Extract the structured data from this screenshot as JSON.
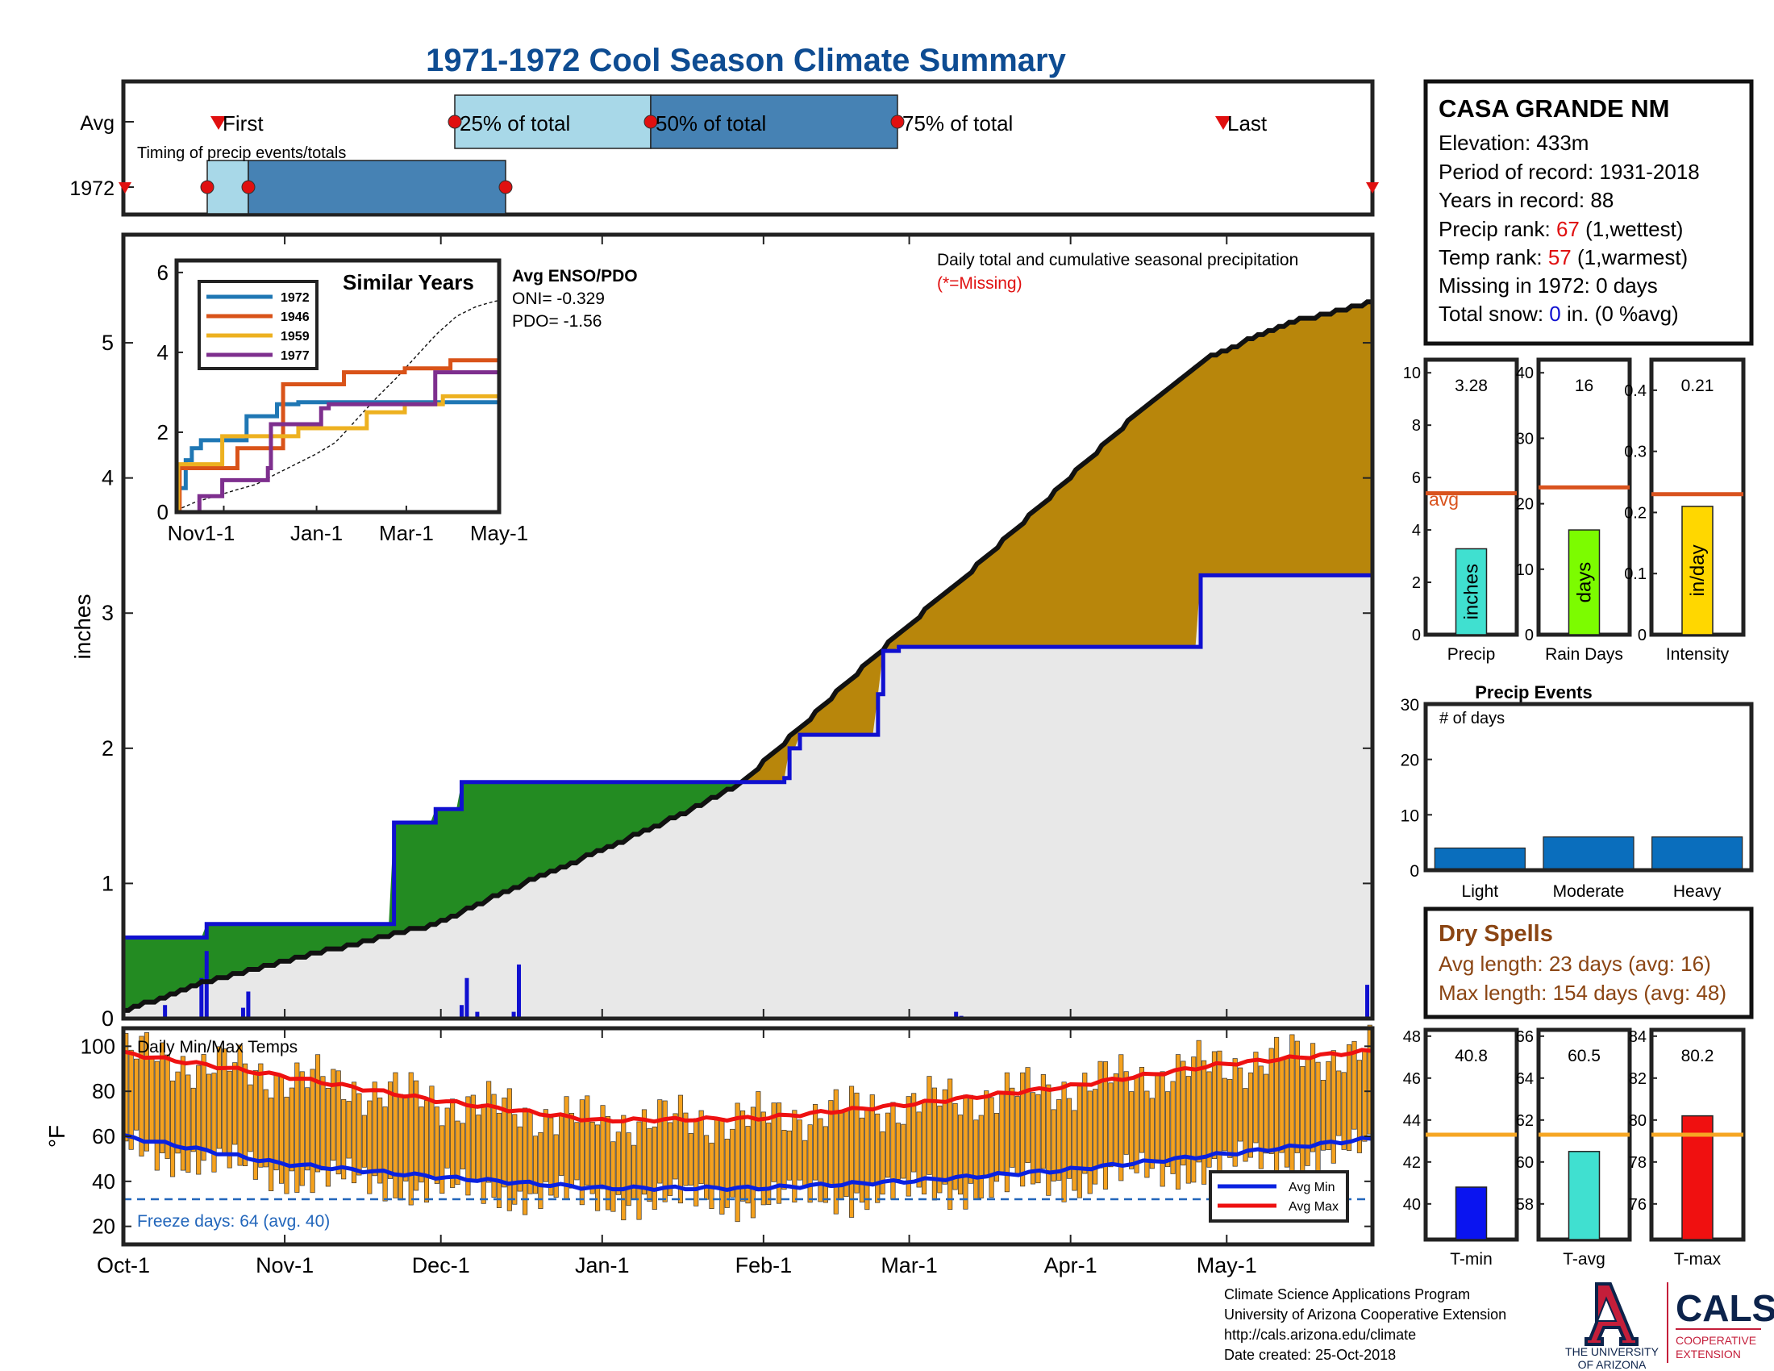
{
  "title": "1971-1972 Cool Season Climate Summary",
  "timing": {
    "avg_label": "Avg",
    "year_label": "1972",
    "caption": "Timing of precip events/totals",
    "first_label": "First",
    "q25_label": "25% of total",
    "q50_label": "50% of total",
    "q75_label": "75% of total",
    "last_label": "Last"
  },
  "station": {
    "name": "CASA GRANDE NM",
    "elevation": "Elevation: 433m",
    "period": "Period of record: 1931-2018",
    "years": "Years in record: 88",
    "precip_rank_pre": "Precip rank: ",
    "precip_rank_val": "67",
    "precip_rank_post": " (1,wettest)",
    "temp_rank_pre": "Temp rank: ",
    "temp_rank_val": "57",
    "temp_rank_post": " (1,warmest)",
    "missing": "Missing in 1972: 0 days",
    "snow_pre": "Total snow: ",
    "snow_val": "0",
    "snow_post": " in. (0 %avg)"
  },
  "main": {
    "ylabel": "inches",
    "note1": "Daily total and cumulative seasonal precipitation",
    "note2": "(*=Missing)",
    "xticks": [
      "Oct-1",
      "Nov-1",
      "Dec-1",
      "Jan-1",
      "Feb-1",
      "Mar-1",
      "Apr-1",
      "May-1"
    ],
    "yticks": [
      "0",
      "1",
      "2",
      "3",
      "4",
      "5"
    ]
  },
  "inset": {
    "title": "Similar Years",
    "enso_title": "Avg ENSO/PDO",
    "oni": "ONI= -0.329",
    "pdo": "PDO= -1.56",
    "xticks": [
      "Nov1-1",
      "Jan-1",
      "Mar-1",
      "May-1"
    ],
    "yticks": [
      "0",
      "2",
      "4",
      "6"
    ],
    "legend": [
      "1972",
      "1946",
      "1959",
      "1977"
    ]
  },
  "temps": {
    "title": "Daily Min/Max Temps",
    "ylabel": "°F",
    "yticks": [
      "20",
      "40",
      "60",
      "80",
      "100"
    ],
    "freeze": "Freeze days: 64 (avg. 40)",
    "legend_min": "Avg Min",
    "legend_max": "Avg Max"
  },
  "bars": {
    "precip": {
      "value": "3.28",
      "label": "Precip",
      "unit": "inches",
      "yticks": [
        "0",
        "2",
        "4",
        "6",
        "8",
        "10"
      ],
      "avg_label": "avg"
    },
    "raindays": {
      "value": "16",
      "label": "Rain Days",
      "unit": "days",
      "yticks": [
        "0",
        "10",
        "20",
        "30",
        "40"
      ]
    },
    "intensity": {
      "value": "0.21",
      "label": "Intensity",
      "unit": "in/day",
      "yticks": [
        "0",
        "0.1",
        "0.2",
        "0.3",
        "0.4"
      ]
    }
  },
  "events": {
    "title": "Precip Events",
    "ylabel": "# of days",
    "yticks": [
      "0",
      "10",
      "20",
      "30"
    ],
    "categories": [
      "Light",
      "Moderate",
      "Heavy"
    ]
  },
  "dry": {
    "title": "Dry Spells",
    "avg": "Avg length: 23 days (avg: 16)",
    "max": "Max length: 154 days (avg: 48)"
  },
  "tbars": {
    "tmin": {
      "value": "40.8",
      "label": "T-min",
      "yticks": [
        "40",
        "42",
        "44",
        "46",
        "48"
      ]
    },
    "tavg": {
      "value": "60.5",
      "label": "T-avg",
      "yticks": [
        "58",
        "60",
        "62",
        "64",
        "66"
      ]
    },
    "tmax": {
      "value": "80.2",
      "label": "T-max",
      "yticks": [
        "76",
        "78",
        "80",
        "82",
        "84"
      ]
    }
  },
  "footer": {
    "line1": "Climate Science Applications Program",
    "line2": "University of Arizona Cooperative Extension",
    "line3": "http://cals.arizona.edu/climate",
    "line4": " Date created: 25-Oct-2018",
    "ua1": "THE UNIVERSITY",
    "ua2": "OF ARIZONA",
    "cals": "CALS",
    "cals1": "COOPERATIVE",
    "cals2": "EXTENSION"
  },
  "colors": {
    "title": "#0e4c92",
    "observed": "#1010d0",
    "above": "#238b22",
    "below": "#b8860b",
    "baseline": "#e8e8e8",
    "temp_bar": "#f4a11e",
    "avg_min": "#0a22e0",
    "avg_max": "#ee1111",
    "rank_red": "#e01010",
    "snow_blue": "#1010d0",
    "dry_brown": "#8b4513"
  },
  "chart_data": [
    {
      "type": "area",
      "title": "Daily total and cumulative seasonal precipitation",
      "ylabel": "inches",
      "x_ticks": [
        "Oct-1",
        "Nov-1",
        "Dec-1",
        "Jan-1",
        "Feb-1",
        "Mar-1",
        "Apr-1",
        "May-1"
      ],
      "ylim": [
        0,
        5.8
      ],
      "series": [
        {
          "name": "1972",
          "x": [
            1,
            10,
            17,
            52,
            53,
            60,
            61,
            64,
            66,
            115,
            128,
            129,
            131,
            139,
            146,
            147,
            150,
            207,
            208,
            241
          ],
          "y": [
            0.6,
            0.6,
            0.7,
            0.7,
            1.45,
            1.45,
            1.55,
            1.55,
            1.75,
            1.75,
            1.78,
            2.0,
            2.1,
            2.1,
            2.4,
            2.72,
            2.75,
            2.75,
            3.28,
            3.28
          ]
        },
        {
          "x": [
            1,
            15,
            30,
            45,
            61,
            75,
            90,
            105,
            120,
            135,
            150,
            165,
            180,
            195,
            210,
            225,
            241
          ],
          "y": [
            0.05,
            0.25,
            0.4,
            0.55,
            0.7,
            0.95,
            1.2,
            1.45,
            1.75,
            2.3,
            2.85,
            3.35,
            3.9,
            4.45,
            4.9,
            5.15,
            5.3
          ]
        }
      ]
    },
    {
      "type": "bar",
      "title": "Daily total precipitation",
      "ylabel": "inches",
      "x": [
        9,
        16,
        17,
        24,
        25,
        66,
        67,
        69,
        76,
        77,
        161,
        162,
        240,
        241
      ],
      "y": [
        0.1,
        0.3,
        0.5,
        0.08,
        0.2,
        0.1,
        0.3,
        0.05,
        0.05,
        0.4,
        0.05,
        0.02,
        0.25,
        0.37
      ]
    },
    {
      "type": "line",
      "title": "Similar Years",
      "x_ticks": [
        "Nov1-1",
        "Jan-1",
        "Mar-1",
        "May-1"
      ],
      "ylim": [
        0,
        6
      ],
      "series": [
        {
          "name": "1972",
          "x": [
            0,
            1,
            6,
            10,
            16,
            24,
            46,
            66,
            80,
            120,
            208,
            212
          ],
          "y": [
            0,
            0.6,
            1.3,
            1.6,
            1.8,
            1.8,
            2.4,
            2.7,
            2.75,
            2.75,
            2.75,
            3.3
          ]
        },
        {
          "name": "1946",
          "x": [
            0,
            2,
            10,
            40,
            70,
            85,
            110,
            150,
            180,
            212
          ],
          "y": [
            0,
            1.1,
            1.1,
            1.6,
            3.2,
            3.2,
            3.5,
            3.6,
            3.8,
            3.8
          ]
        },
        {
          "name": "1959",
          "x": [
            0,
            1,
            30,
            55,
            80,
            112,
            125,
            150,
            175,
            212
          ],
          "y": [
            0,
            1.2,
            1.9,
            1.9,
            2.1,
            2.1,
            2.5,
            2.7,
            2.9,
            2.9
          ]
        },
        {
          "name": "1977",
          "x": [
            0,
            15,
            30,
            60,
            62,
            88,
            95,
            100,
            165,
            170,
            212
          ],
          "y": [
            0,
            0.4,
            0.8,
            1.1,
            2.2,
            2.2,
            2.6,
            2.7,
            2.7,
            3.5,
            3.5
          ]
        }
      ]
    },
    {
      "type": "line",
      "title": "Daily Min/Max Temps",
      "ylabel": "°F",
      "x_ticks": [
        "Oct-1",
        "Nov-1",
        "Dec-1",
        "Jan-1",
        "Feb-1",
        "Mar-1",
        "Apr-1",
        "May-1"
      ],
      "ylim": [
        12,
        108
      ],
      "series": [
        {
          "name": "Avg Min",
          "x": [
            1,
            31,
            61,
            92,
            123,
            151,
            182,
            212,
            241
          ],
          "y": [
            60,
            48,
            42,
            37,
            37,
            40,
            45,
            52,
            59
          ]
        },
        {
          "name": "Avg Max",
          "x": [
            1,
            31,
            61,
            92,
            123,
            151,
            182,
            212,
            241
          ],
          "y": [
            97,
            87,
            76,
            67,
            68,
            74,
            82,
            92,
            98
          ]
        }
      ]
    },
    {
      "type": "bar",
      "title": "Precip Events",
      "ylabel": "# of days",
      "categories": [
        "Light",
        "Moderate",
        "Heavy"
      ],
      "values": [
        4,
        6,
        6
      ],
      "ylim": [
        0,
        30
      ]
    },
    {
      "type": "bar",
      "categories": [
        "Precip",
        "Rain Days",
        "Intensity"
      ],
      "values": [
        3.28,
        16,
        0.21
      ],
      "averages": [
        5.4,
        22.5,
        0.23
      ]
    },
    {
      "type": "bar",
      "categories": [
        "T-min",
        "T-avg",
        "T-max"
      ],
      "values": [
        40.8,
        60.5,
        80.2
      ],
      "averages": [
        43.3,
        61.3,
        79.3
      ]
    }
  ]
}
